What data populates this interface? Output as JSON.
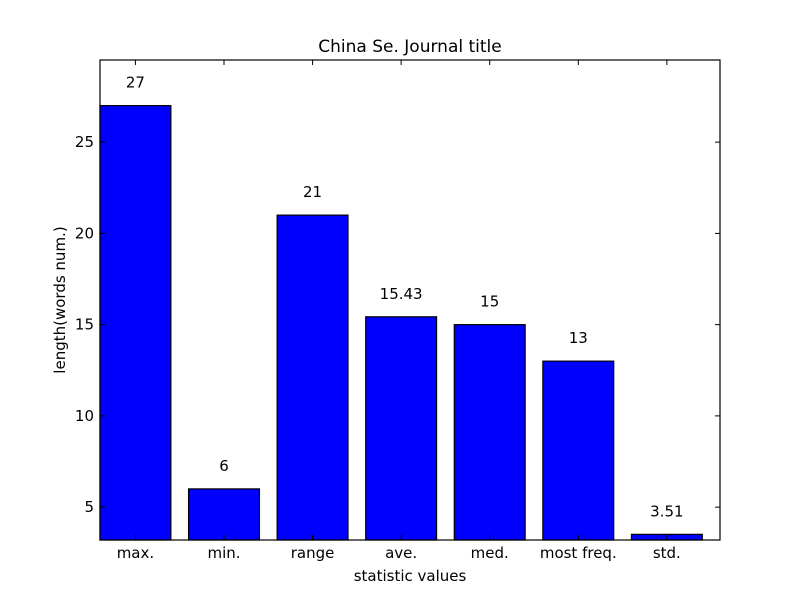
{
  "chart_data": {
    "type": "bar",
    "title": "China Se. Journal title",
    "xlabel": "statistic values",
    "ylabel": "length(words num.)",
    "categories": [
      "max.",
      "min.",
      "range",
      "ave.",
      "med.",
      "most freq.",
      "std."
    ],
    "values": [
      27,
      6,
      21,
      15.43,
      15,
      13,
      3.51
    ],
    "value_labels": [
      "27",
      "6",
      "21",
      "15.43",
      "15",
      "13",
      "3.51"
    ],
    "ylim": [
      3.2,
      29.5
    ],
    "yticks": [
      5,
      10,
      15,
      20,
      25
    ],
    "grid": false,
    "bar_color": "#0000ff"
  }
}
